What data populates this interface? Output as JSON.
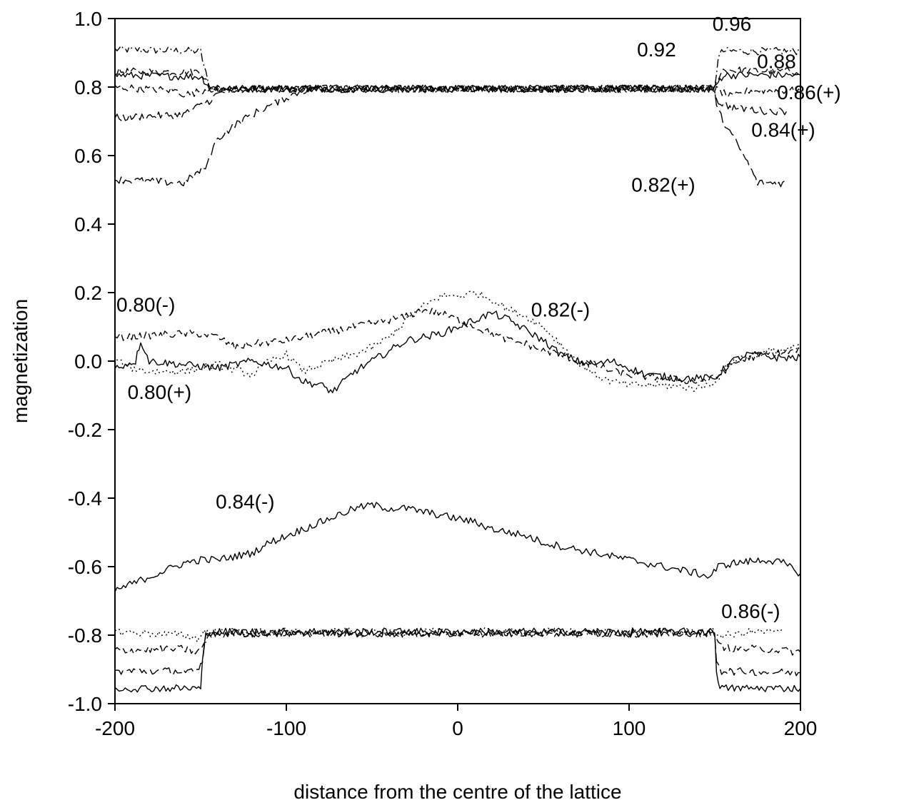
{
  "chart_data": {
    "type": "line",
    "title": "",
    "xlabel": "distance from the centre of  the lattice",
    "ylabel": "magnetization",
    "xlim": [
      -200,
      200
    ],
    "ylim": [
      -1.0,
      1.0
    ],
    "x_ticks": [
      -200,
      -100,
      0,
      100,
      200
    ],
    "x_tick_labels": [
      "-200",
      "-100",
      "0",
      "100",
      "200"
    ],
    "y_ticks": [
      -1.0,
      -0.8,
      -0.6,
      -0.4,
      -0.2,
      0.0,
      0.2,
      0.4,
      0.6,
      0.8,
      1.0
    ],
    "y_tick_labels": [
      "-1.0",
      "-0.8",
      "-0.6",
      "-0.4",
      "-0.2",
      "0.0",
      "0.2",
      "0.4",
      "0.6",
      "0.8",
      "1.0"
    ],
    "grid": false,
    "legend": "none",
    "line_color": "#000000",
    "annotations": [
      {
        "text": "0.96",
        "x": 160,
        "y": 0.965
      },
      {
        "text": "0.92",
        "x": 116,
        "y": 0.89
      },
      {
        "text": "0.88",
        "x": 186,
        "y": 0.855
      },
      {
        "text": "0.86(+)",
        "x": 205,
        "y": 0.765
      },
      {
        "text": "0.84(+)",
        "x": 190,
        "y": 0.655
      },
      {
        "text": "0.82(+)",
        "x": 120,
        "y": 0.495
      },
      {
        "text": "0.80(-)",
        "x": -182,
        "y": 0.145
      },
      {
        "text": "0.82(-)",
        "x": 60,
        "y": 0.13
      },
      {
        "text": "0.80(+)",
        "x": -174,
        "y": -0.11
      },
      {
        "text": "0.84(-)",
        "x": -124,
        "y": -0.43
      },
      {
        "text": "0.86(-)",
        "x": 171,
        "y": -0.75
      }
    ],
    "series": [
      {
        "style": "dashdot",
        "points": [
          [
            -200,
            0.91
          ],
          [
            -150,
            0.905
          ],
          [
            -148,
            0.86
          ],
          [
            -145,
            0.8
          ],
          [
            -140,
            0.795
          ],
          [
            150,
            0.795
          ],
          [
            152,
            0.89
          ],
          [
            155,
            0.905
          ],
          [
            200,
            0.905
          ]
        ]
      },
      {
        "style": "dashed",
        "points": [
          [
            -200,
            0.845
          ],
          [
            -150,
            0.845
          ],
          [
            -148,
            0.83
          ],
          [
            -145,
            0.8
          ],
          [
            -140,
            0.795
          ],
          [
            150,
            0.795
          ],
          [
            152,
            0.83
          ],
          [
            155,
            0.85
          ],
          [
            200,
            0.845
          ]
        ]
      },
      {
        "style": "solid",
        "points": [
          [
            -200,
            0.835
          ],
          [
            -150,
            0.83
          ],
          [
            -148,
            0.82
          ],
          [
            -145,
            0.8
          ],
          [
            -140,
            0.795
          ],
          [
            150,
            0.795
          ],
          [
            152,
            0.815
          ],
          [
            155,
            0.835
          ],
          [
            200,
            0.835
          ]
        ]
      },
      {
        "style": "dashed",
        "points": [
          [
            -200,
            0.8
          ],
          [
            -165,
            0.79
          ],
          [
            -160,
            0.78
          ],
          [
            -155,
            0.78
          ],
          [
            -150,
            0.79
          ],
          [
            -145,
            0.795
          ],
          [
            150,
            0.795
          ],
          [
            152,
            0.79
          ],
          [
            160,
            0.77
          ],
          [
            170,
            0.79
          ],
          [
            200,
            0.79
          ]
        ]
      },
      {
        "style": "longdash",
        "points": [
          [
            -200,
            0.71
          ],
          [
            -160,
            0.72
          ],
          [
            -145,
            0.76
          ],
          [
            -140,
            0.78
          ],
          [
            -130,
            0.79
          ],
          [
            -120,
            0.795
          ],
          [
            150,
            0.795
          ],
          [
            151,
            0.76
          ],
          [
            160,
            0.74
          ],
          [
            180,
            0.73
          ],
          [
            192,
            0.73
          ]
        ]
      },
      {
        "style": "longdash",
        "points": [
          [
            -200,
            0.53
          ],
          [
            -160,
            0.52
          ],
          [
            -146,
            0.57
          ],
          [
            -145,
            0.6
          ],
          [
            -140,
            0.65
          ],
          [
            -130,
            0.69
          ],
          [
            -120,
            0.72
          ],
          [
            -110,
            0.745
          ],
          [
            -100,
            0.77
          ],
          [
            -90,
            0.79
          ],
          [
            -80,
            0.795
          ],
          [
            150,
            0.795
          ],
          [
            151,
            0.74
          ],
          [
            155,
            0.7
          ],
          [
            160,
            0.66
          ],
          [
            168,
            0.59
          ],
          [
            175,
            0.52
          ],
          [
            185,
            0.52
          ],
          [
            192,
            0.52
          ]
        ]
      },
      {
        "style": "solid",
        "points": [
          [
            -200,
            -0.02
          ],
          [
            -188,
            0.0
          ],
          [
            -185,
            0.06
          ],
          [
            -180,
            0.0
          ],
          [
            -160,
            -0.01
          ],
          [
            -140,
            -0.02
          ],
          [
            -120,
            0.0
          ],
          [
            -100,
            -0.02
          ],
          [
            -90,
            -0.06
          ],
          [
            -80,
            -0.07
          ],
          [
            -73,
            -0.09
          ],
          [
            -60,
            -0.03
          ],
          [
            -50,
            0.0
          ],
          [
            -40,
            0.03
          ],
          [
            -30,
            0.06
          ],
          [
            -20,
            0.07
          ],
          [
            -10,
            0.08
          ],
          [
            0,
            0.1
          ],
          [
            10,
            0.12
          ],
          [
            20,
            0.14
          ],
          [
            30,
            0.12
          ],
          [
            40,
            0.09
          ],
          [
            50,
            0.06
          ],
          [
            60,
            0.02
          ],
          [
            70,
            0.0
          ],
          [
            80,
            -0.01
          ],
          [
            90,
            0.0
          ],
          [
            100,
            -0.02
          ],
          [
            110,
            -0.04
          ],
          [
            130,
            -0.05
          ],
          [
            150,
            -0.05
          ],
          [
            160,
            0.0
          ],
          [
            170,
            0.02
          ],
          [
            185,
            0.01
          ],
          [
            200,
            0.01
          ]
        ]
      },
      {
        "style": "dashed",
        "points": [
          [
            -200,
            0.07
          ],
          [
            -160,
            0.08
          ],
          [
            -150,
            0.08
          ],
          [
            -140,
            0.07
          ],
          [
            -130,
            0.04
          ],
          [
            -120,
            0.05
          ],
          [
            -100,
            0.06
          ],
          [
            -80,
            0.08
          ],
          [
            -60,
            0.1
          ],
          [
            -40,
            0.12
          ],
          [
            -30,
            0.13
          ],
          [
            -20,
            0.15
          ],
          [
            -10,
            0.14
          ],
          [
            0,
            0.12
          ],
          [
            10,
            0.1
          ],
          [
            20,
            0.08
          ],
          [
            30,
            0.06
          ],
          [
            40,
            0.05
          ],
          [
            50,
            0.03
          ],
          [
            60,
            0.02
          ],
          [
            70,
            0.0
          ],
          [
            80,
            -0.01
          ],
          [
            90,
            -0.03
          ],
          [
            100,
            -0.04
          ],
          [
            120,
            -0.05
          ],
          [
            140,
            -0.06
          ],
          [
            150,
            -0.05
          ],
          [
            160,
            -0.01
          ],
          [
            170,
            0.01
          ],
          [
            180,
            0.02
          ],
          [
            200,
            0.03
          ]
        ]
      },
      {
        "style": "dotted",
        "points": [
          [
            -200,
            0.0
          ],
          [
            -190,
            -0.02
          ],
          [
            -180,
            -0.03
          ],
          [
            -160,
            -0.03
          ],
          [
            -140,
            -0.01
          ],
          [
            -120,
            -0.04
          ],
          [
            -110,
            0.0
          ],
          [
            -100,
            0.02
          ],
          [
            -90,
            -0.03
          ],
          [
            -80,
            -0.01
          ],
          [
            -60,
            0.02
          ],
          [
            -50,
            0.04
          ],
          [
            -40,
            0.07
          ],
          [
            -30,
            0.12
          ],
          [
            -20,
            0.16
          ],
          [
            -10,
            0.19
          ],
          [
            0,
            0.19
          ],
          [
            10,
            0.2
          ],
          [
            20,
            0.18
          ],
          [
            30,
            0.15
          ],
          [
            40,
            0.13
          ],
          [
            50,
            0.1
          ],
          [
            60,
            0.05
          ],
          [
            70,
            0.0
          ],
          [
            80,
            -0.04
          ],
          [
            90,
            -0.06
          ],
          [
            100,
            -0.07
          ],
          [
            120,
            -0.07
          ],
          [
            140,
            -0.08
          ],
          [
            150,
            -0.06
          ],
          [
            160,
            0.0
          ],
          [
            170,
            0.02
          ],
          [
            185,
            0.03
          ],
          [
            200,
            0.04
          ]
        ]
      },
      {
        "style": "solid",
        "points": [
          [
            -200,
            -0.67
          ],
          [
            -190,
            -0.65
          ],
          [
            -180,
            -0.63
          ],
          [
            -170,
            -0.61
          ],
          [
            -160,
            -0.59
          ],
          [
            -150,
            -0.58
          ],
          [
            -140,
            -0.58
          ],
          [
            -130,
            -0.57
          ],
          [
            -120,
            -0.56
          ],
          [
            -110,
            -0.53
          ],
          [
            -100,
            -0.51
          ],
          [
            -90,
            -0.49
          ],
          [
            -80,
            -0.47
          ],
          [
            -70,
            -0.45
          ],
          [
            -60,
            -0.43
          ],
          [
            -50,
            -0.42
          ],
          [
            -40,
            -0.43
          ],
          [
            -30,
            -0.43
          ],
          [
            -20,
            -0.44
          ],
          [
            -10,
            -0.45
          ],
          [
            0,
            -0.46
          ],
          [
            10,
            -0.47
          ],
          [
            20,
            -0.49
          ],
          [
            30,
            -0.5
          ],
          [
            40,
            -0.51
          ],
          [
            50,
            -0.53
          ],
          [
            60,
            -0.54
          ],
          [
            70,
            -0.55
          ],
          [
            80,
            -0.56
          ],
          [
            90,
            -0.57
          ],
          [
            100,
            -0.58
          ],
          [
            110,
            -0.59
          ],
          [
            120,
            -0.6
          ],
          [
            130,
            -0.61
          ],
          [
            140,
            -0.62
          ],
          [
            147,
            -0.63
          ],
          [
            152,
            -0.6
          ],
          [
            160,
            -0.59
          ],
          [
            180,
            -0.58
          ],
          [
            190,
            -0.59
          ],
          [
            200,
            -0.62
          ]
        ]
      },
      {
        "style": "dotted",
        "points": [
          [
            -200,
            -0.79
          ],
          [
            -160,
            -0.8
          ],
          [
            -152,
            -0.81
          ],
          [
            -148,
            -0.79
          ],
          [
            -145,
            -0.79
          ],
          [
            150,
            -0.79
          ],
          [
            152,
            -0.8
          ],
          [
            160,
            -0.8
          ],
          [
            170,
            -0.79
          ],
          [
            190,
            -0.79
          ]
        ]
      },
      {
        "style": "dashed",
        "points": [
          [
            -200,
            -0.845
          ],
          [
            -160,
            -0.84
          ],
          [
            -152,
            -0.85
          ],
          [
            -148,
            -0.83
          ],
          [
            -145,
            -0.795
          ],
          [
            150,
            -0.795
          ],
          [
            152,
            -0.83
          ],
          [
            160,
            -0.84
          ],
          [
            180,
            -0.84
          ],
          [
            200,
            -0.85
          ]
        ]
      },
      {
        "style": "longdash",
        "points": [
          [
            -200,
            -0.905
          ],
          [
            -160,
            -0.905
          ],
          [
            -152,
            -0.91
          ],
          [
            -149,
            -0.88
          ],
          [
            -147,
            -0.8
          ],
          [
            -145,
            -0.795
          ],
          [
            150,
            -0.795
          ],
          [
            151,
            -0.87
          ],
          [
            154,
            -0.905
          ],
          [
            200,
            -0.91
          ]
        ]
      },
      {
        "style": "solid",
        "points": [
          [
            -200,
            -0.955
          ],
          [
            -150,
            -0.955
          ],
          [
            -149,
            -0.88
          ],
          [
            -147,
            -0.8
          ],
          [
            -145,
            -0.79
          ],
          [
            150,
            -0.79
          ],
          [
            151,
            -0.9
          ],
          [
            153,
            -0.955
          ],
          [
            200,
            -0.955
          ]
        ]
      }
    ]
  }
}
